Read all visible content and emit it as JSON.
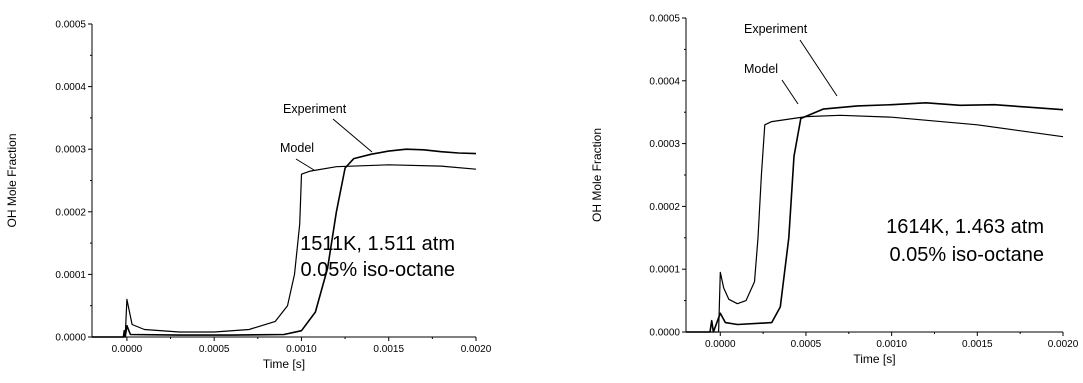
{
  "chart_data": [
    {
      "type": "line",
      "title": "",
      "xlabel": "Time [s]",
      "ylabel": "OH Mole Fraction",
      "xlim": [
        -0.0002,
        0.002
      ],
      "ylim": [
        0,
        0.0005
      ],
      "xticks": [
        "0.0000",
        "0.0005",
        "0.0010",
        "0.0015",
        "0.0020"
      ],
      "yticks": [
        "0.0000",
        "0.0001",
        "0.0002",
        "0.0003",
        "0.0004",
        "0.0005"
      ],
      "conditions": [
        "1511K, 1.511 atm",
        "0.05% iso-octane"
      ],
      "annotations": {
        "experiment": "Experiment",
        "model": "Model"
      },
      "series": [
        {
          "name": "Model",
          "points": [
            [
              -0.0002,
              0
            ],
            [
              -1e-05,
              0
            ],
            [
              0,
              6e-05
            ],
            [
              3e-05,
              2e-05
            ],
            [
              0.0001,
              1.2e-05
            ],
            [
              0.0003,
              8e-06
            ],
            [
              0.0005,
              8e-06
            ],
            [
              0.0007,
              1.2e-05
            ],
            [
              0.00085,
              2.5e-05
            ],
            [
              0.00092,
              5e-05
            ],
            [
              0.00096,
              0.0001
            ],
            [
              0.00099,
              0.00018
            ],
            [
              0.001,
              0.00026
            ],
            [
              0.00105,
              0.000265
            ],
            [
              0.0012,
              0.000272
            ],
            [
              0.0015,
              0.000275
            ],
            [
              0.0018,
              0.000273
            ],
            [
              0.002,
              0.000268
            ]
          ]
        },
        {
          "name": "Experiment",
          "points": [
            [
              -0.0002,
              0
            ],
            [
              -2e-05,
              0
            ],
            [
              -1.5e-05,
              1e-05
            ],
            [
              -1e-05,
              0
            ],
            [
              0,
              1.8e-05
            ],
            [
              2e-05,
              4e-06
            ],
            [
              0.0003,
              3e-06
            ],
            [
              0.0006,
              3e-06
            ],
            [
              0.0009,
              4e-06
            ],
            [
              0.001,
              1e-05
            ],
            [
              0.00108,
              4e-05
            ],
            [
              0.00115,
              0.00011
            ],
            [
              0.0012,
              0.0002
            ],
            [
              0.00125,
              0.00027
            ],
            [
              0.0013,
              0.000285
            ],
            [
              0.0014,
              0.000292
            ],
            [
              0.0015,
              0.000297
            ],
            [
              0.0016,
              0.0003
            ],
            [
              0.0017,
              0.000299
            ],
            [
              0.0018,
              0.000296
            ],
            [
              0.0019,
              0.000294
            ],
            [
              0.002,
              0.000293
            ]
          ]
        }
      ]
    },
    {
      "type": "line",
      "title": "",
      "xlabel": "Time [s]",
      "ylabel": "OH Mole Fraction",
      "xlim": [
        -0.0002,
        0.002
      ],
      "ylim": [
        0,
        0.0005
      ],
      "xticks": [
        "0.0000",
        "0.0005",
        "0.0010",
        "0.0015",
        "0.0020"
      ],
      "yticks": [
        "0.0000",
        "0.0001",
        "0.0002",
        "0.0003",
        "0.0004",
        "0.0005"
      ],
      "conditions": [
        "1614K, 1.463 atm",
        "0.05% iso-octane"
      ],
      "annotations": {
        "experiment": "Experiment",
        "model": "Model"
      },
      "series": [
        {
          "name": "Model",
          "points": [
            [
              -0.0002,
              0
            ],
            [
              -1e-05,
              0
            ],
            [
              0,
              9.5e-05
            ],
            [
              2e-05,
              7e-05
            ],
            [
              5e-05,
              5.2e-05
            ],
            [
              0.0001,
              4.5e-05
            ],
            [
              0.00015,
              5e-05
            ],
            [
              0.0002,
              8e-05
            ],
            [
              0.00022,
              0.00015
            ],
            [
              0.00024,
              0.00025
            ],
            [
              0.00026,
              0.00033
            ],
            [
              0.0003,
              0.000335
            ],
            [
              0.0005,
              0.000343
            ],
            [
              0.0007,
              0.000345
            ],
            [
              0.001,
              0.000342
            ],
            [
              0.0015,
              0.00033
            ],
            [
              0.002,
              0.000311
            ]
          ]
        },
        {
          "name": "Experiment",
          "points": [
            [
              -0.0002,
              0
            ],
            [
              -6e-05,
              0
            ],
            [
              -5e-05,
              1.8e-05
            ],
            [
              -4e-05,
              0
            ],
            [
              0,
              3e-05
            ],
            [
              3e-05,
              1.5e-05
            ],
            [
              0.0001,
              1.2e-05
            ],
            [
              0.0003,
              1.5e-05
            ],
            [
              0.00035,
              4e-05
            ],
            [
              0.0004,
              0.00015
            ],
            [
              0.00043,
              0.00028
            ],
            [
              0.00047,
              0.00034
            ],
            [
              0.0006,
              0.000355
            ],
            [
              0.0008,
              0.00036
            ],
            [
              0.001,
              0.000362
            ],
            [
              0.0012,
              0.000365
            ],
            [
              0.0014,
              0.000361
            ],
            [
              0.0016,
              0.000362
            ],
            [
              0.0018,
              0.000358
            ],
            [
              0.002,
              0.000354
            ]
          ]
        }
      ]
    }
  ]
}
